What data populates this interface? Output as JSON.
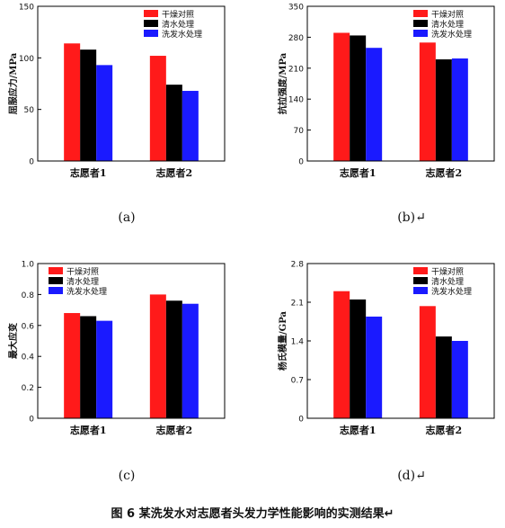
{
  "caption": "图 6  某洗发水对志愿者头发力学性能影响的实测结果↵",
  "legend_colors": {
    "干燥对照": "#ff1a1a",
    "清水处理": "#000000",
    "洗发水处理": "#1a1aff"
  },
  "chart_data": [
    {
      "type": "bar",
      "panel_label": "(a)",
      "categories": [
        "志愿者1",
        "志愿者2"
      ],
      "ylabel": "屈服应力/MPa",
      "ylim": [
        0,
        150
      ],
      "yticks": [
        0,
        50,
        100,
        150
      ],
      "legend_position": "top-right",
      "series": [
        {
          "name": "干燥对照",
          "values": [
            114,
            102
          ]
        },
        {
          "name": "清水处理",
          "values": [
            108,
            74
          ]
        },
        {
          "name": "洗发水处理",
          "values": [
            93,
            68
          ]
        }
      ]
    },
    {
      "type": "bar",
      "panel_label": "(b)↵",
      "categories": [
        "志愿者1",
        "志愿者2"
      ],
      "ylabel": "抗拉强度/MPa",
      "ylim": [
        0,
        350
      ],
      "yticks": [
        0,
        70,
        140,
        210,
        280,
        350
      ],
      "legend_position": "top-right",
      "series": [
        {
          "name": "干燥对照",
          "values": [
            290,
            268
          ]
        },
        {
          "name": "清水处理",
          "values": [
            284,
            230
          ]
        },
        {
          "name": "洗发水处理",
          "values": [
            256,
            232
          ]
        }
      ]
    },
    {
      "type": "bar",
      "panel_label": "(c)",
      "categories": [
        "志愿者1",
        "志愿者2"
      ],
      "ylabel": "最大应变",
      "ylim": [
        0,
        1.0
      ],
      "yticks": [
        "0",
        "0.2",
        "0.4",
        "0.6",
        "0.8",
        "1.0"
      ],
      "legend_position": "top-left",
      "series": [
        {
          "name": "干燥对照",
          "values": [
            0.68,
            0.8
          ]
        },
        {
          "name": "清水处理",
          "values": [
            0.66,
            0.76
          ]
        },
        {
          "name": "洗发水处理",
          "values": [
            0.63,
            0.74
          ]
        }
      ]
    },
    {
      "type": "bar",
      "panel_label": "(d)↵",
      "categories": [
        "志愿者1",
        "志愿者2"
      ],
      "ylabel": "杨氏模量/GPa",
      "ylim": [
        0,
        2.8
      ],
      "yticks": [
        "0",
        "0.7",
        "1.4",
        "2.1",
        "2.8"
      ],
      "legend_position": "top-right",
      "series": [
        {
          "name": "干燥对照",
          "values": [
            2.3,
            2.03
          ]
        },
        {
          "name": "清水处理",
          "values": [
            2.15,
            1.48
          ]
        },
        {
          "name": "洗发水处理",
          "values": [
            1.84,
            1.4
          ]
        }
      ]
    }
  ]
}
